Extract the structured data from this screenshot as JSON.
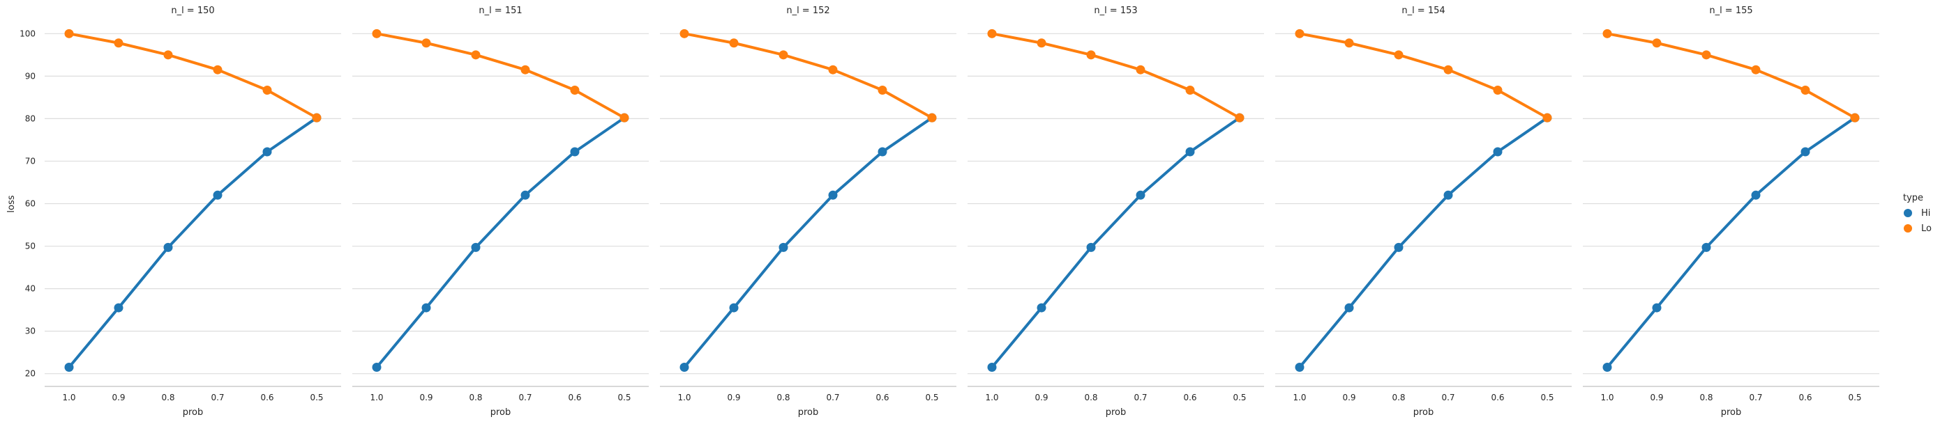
{
  "chart_data": {
    "type": "line",
    "facet_variable": "n_l",
    "panel_titles": [
      "n_l = 150",
      "n_l = 151",
      "n_l = 152",
      "n_l = 153",
      "n_l = 154",
      "n_l = 155"
    ],
    "xlabel": "prob",
    "ylabel": "loss",
    "categories": [
      "1.0",
      "0.9",
      "0.8",
      "0.7",
      "0.6",
      "0.5"
    ],
    "yticks": [
      "20",
      "30",
      "40",
      "50",
      "60",
      "70",
      "80",
      "90",
      "100"
    ],
    "ylim": [
      17,
      103
    ],
    "grid": "horizontal",
    "legend": {
      "title": "type",
      "placement": "right",
      "entries": [
        {
          "label": "Hi",
          "color": "#1f77b4"
        },
        {
          "label": "Lo",
          "color": "#ff7f0e"
        }
      ]
    },
    "series": [
      {
        "name": "Hi",
        "color": "#1f77b4",
        "values": [
          21.5,
          35.5,
          49.7,
          62.0,
          72.2,
          80.2
        ]
      },
      {
        "name": "Lo",
        "color": "#ff7f0e",
        "values": [
          100.0,
          97.8,
          95.0,
          91.5,
          86.7,
          80.2
        ]
      }
    ]
  }
}
